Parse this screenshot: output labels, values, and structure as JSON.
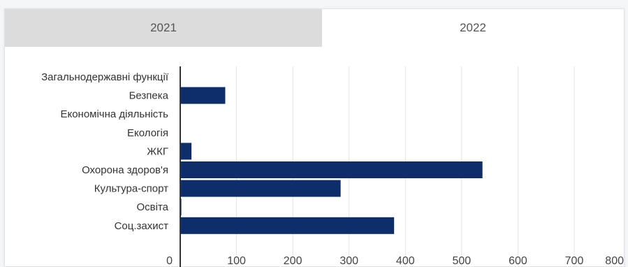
{
  "tabs": [
    {
      "label": "2021",
      "active": false
    },
    {
      "label": "2022",
      "active": true
    }
  ],
  "colors": {
    "bar": "#0d2e6b",
    "grid": "#e3e3e3",
    "tab_inactive_bg": "#dcdcdc",
    "axis_line": "#333333"
  },
  "chart_data": {
    "type": "bar",
    "orientation": "horizontal",
    "categories": [
      "Загальнодержавні функції",
      "Безпека",
      "Економічна діяльність",
      "Екологія",
      "ЖКГ",
      "Охорона здоров'я",
      "Культура-спорт",
      "Освіта",
      "Соц.захист"
    ],
    "values": [
      0,
      80,
      0,
      0,
      20,
      537,
      285,
      2,
      380
    ],
    "xlim": [
      0,
      800
    ],
    "xticks": [
      0,
      100,
      200,
      300,
      400,
      500,
      600,
      700,
      800
    ],
    "grid": true
  }
}
